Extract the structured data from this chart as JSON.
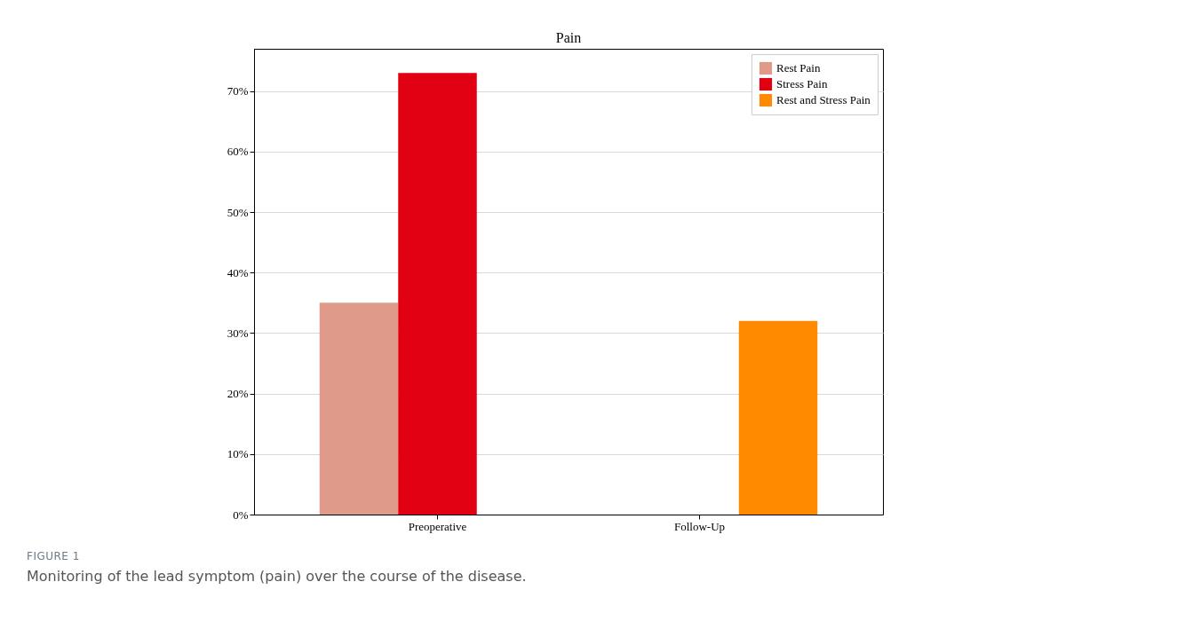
{
  "chart_data": {
    "type": "bar",
    "title": "Pain",
    "categories": [
      "Preoperative",
      "Follow-Up"
    ],
    "series": [
      {
        "name": "Rest Pain",
        "color": "#e09a8a",
        "values": [
          35,
          null
        ]
      },
      {
        "name": "Stress Pain",
        "color": "#e00012",
        "values": [
          73,
          null
        ]
      },
      {
        "name": "Rest and Stress Pain",
        "color": "#ff8a00",
        "values": [
          null,
          32
        ]
      }
    ],
    "ylim": [
      0,
      77
    ],
    "yticks": [
      {
        "value": 0,
        "label": "0%"
      },
      {
        "value": 10,
        "label": "10%"
      },
      {
        "value": 20,
        "label": "20%"
      },
      {
        "value": 30,
        "label": "30%"
      },
      {
        "value": 40,
        "label": "40%"
      },
      {
        "value": 50,
        "label": "50%"
      },
      {
        "value": 60,
        "label": "60%"
      },
      {
        "value": 70,
        "label": "70%"
      }
    ],
    "grid": "y",
    "legend": "top right",
    "annotations": [
      "FIGURE 1",
      "Monitoring of the lead symptom (pain) over the course of the disease."
    ]
  }
}
